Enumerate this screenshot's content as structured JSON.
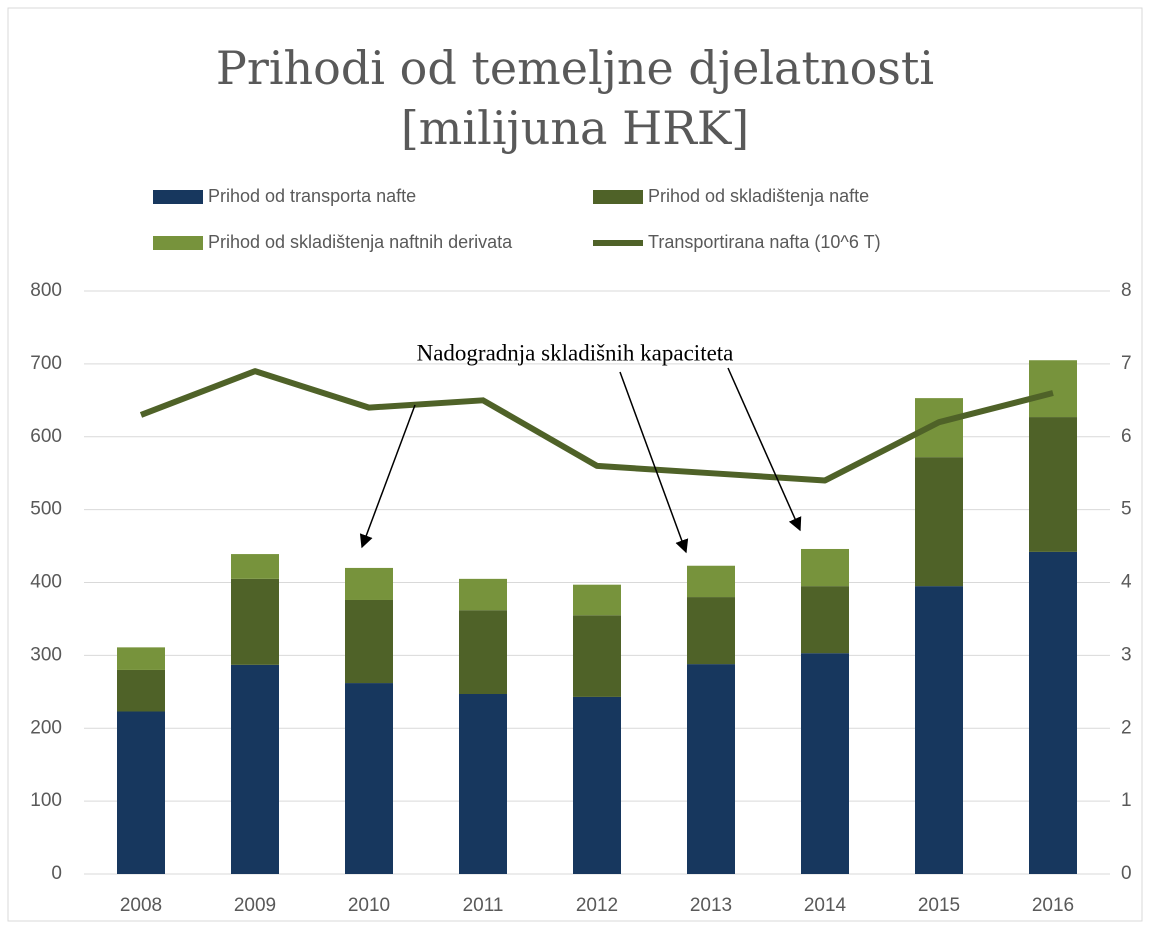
{
  "chart_data": {
    "type": "bar",
    "stacked": true,
    "title": [
      "Prihodi od temeljne djelatnosti",
      "[milijuna HRK]"
    ],
    "annotation": "Nadogradnja skladišnih kapaciteta",
    "categories": [
      "2008",
      "2009",
      "2010",
      "2011",
      "2012",
      "2013",
      "2014",
      "2015",
      "2016"
    ],
    "series": [
      {
        "name": "Prihod od transporta nafte",
        "color": "#17375e",
        "type": "bar",
        "values": [
          223,
          287,
          262,
          247,
          243,
          288,
          303,
          395,
          442
        ]
      },
      {
        "name": "Prihod od skladištenja nafte",
        "color": "#4f6228",
        "type": "bar",
        "values": [
          57,
          118,
          114,
          115,
          112,
          92,
          92,
          177,
          185
        ]
      },
      {
        "name": "Prihod od skladištenja naftnih derivata",
        "color": "#77933c",
        "type": "bar",
        "values": [
          31,
          34,
          44,
          43,
          42,
          43,
          51,
          81,
          78
        ]
      },
      {
        "name": "Transportirana nafta (10^6 T)",
        "color": "#4f6228",
        "type": "line",
        "axis": "y2",
        "values": [
          6.3,
          6.9,
          6.4,
          6.5,
          5.6,
          5.5,
          5.4,
          6.2,
          6.6
        ]
      }
    ],
    "ylim": [
      0,
      800
    ],
    "yticks": [
      0,
      100,
      200,
      300,
      400,
      500,
      600,
      700,
      800
    ],
    "y2lim": [
      0,
      8
    ],
    "y2ticks": [
      0,
      1,
      2,
      3,
      4,
      5,
      6,
      7,
      8
    ],
    "grid": true
  }
}
